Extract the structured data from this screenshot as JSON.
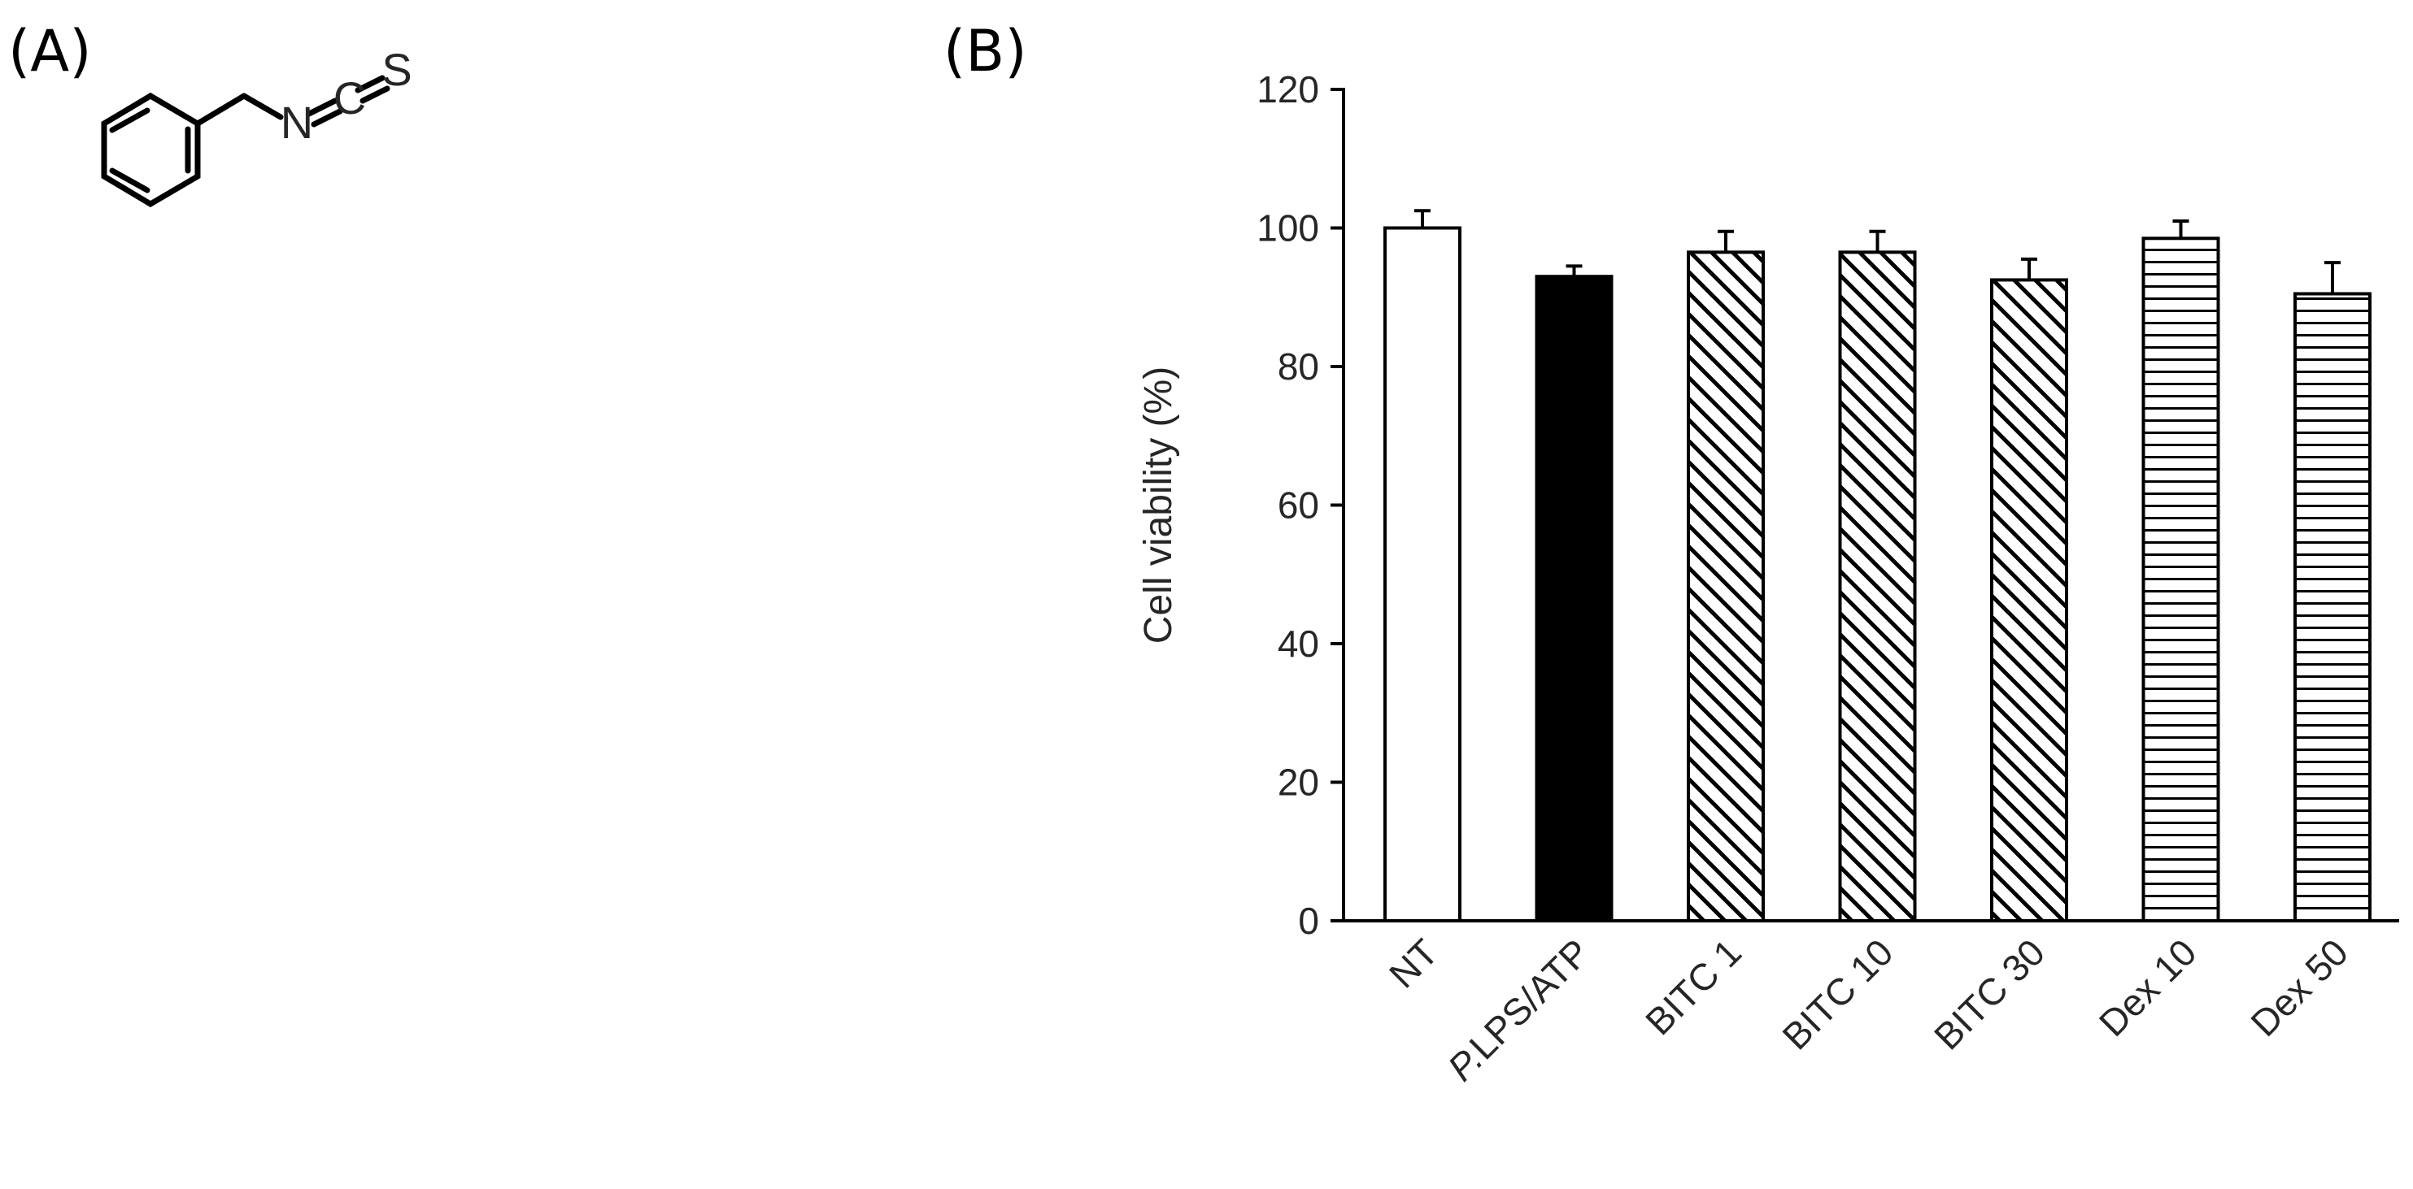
{
  "panels": {
    "a_label": "(A)",
    "b_label": "(B)"
  },
  "molecule": {
    "atom_n": "N",
    "atom_c": "C",
    "atom_s": "S"
  },
  "chart_data": {
    "type": "bar",
    "categories": [
      "NT",
      "P.LPS/ATP",
      "BITC 1",
      "BITC 10",
      "BITC 30",
      "Dex 10",
      "Dex 50"
    ],
    "values": [
      100,
      93,
      96.5,
      96.5,
      92.5,
      98.5,
      90.5
    ],
    "errors": [
      2.5,
      1.5,
      3,
      3,
      3,
      2.5,
      4.5
    ],
    "fills": [
      "white",
      "black",
      "diagonal",
      "diagonal",
      "diagonal",
      "horizontal",
      "horizontal"
    ],
    "title": "",
    "xlabel": "",
    "ylabel": "Cell viability (%)",
    "ylim": [
      0,
      120
    ],
    "yticks": [
      0,
      20,
      40,
      60,
      80,
      100,
      120
    ],
    "grid": false,
    "legend": "none"
  }
}
